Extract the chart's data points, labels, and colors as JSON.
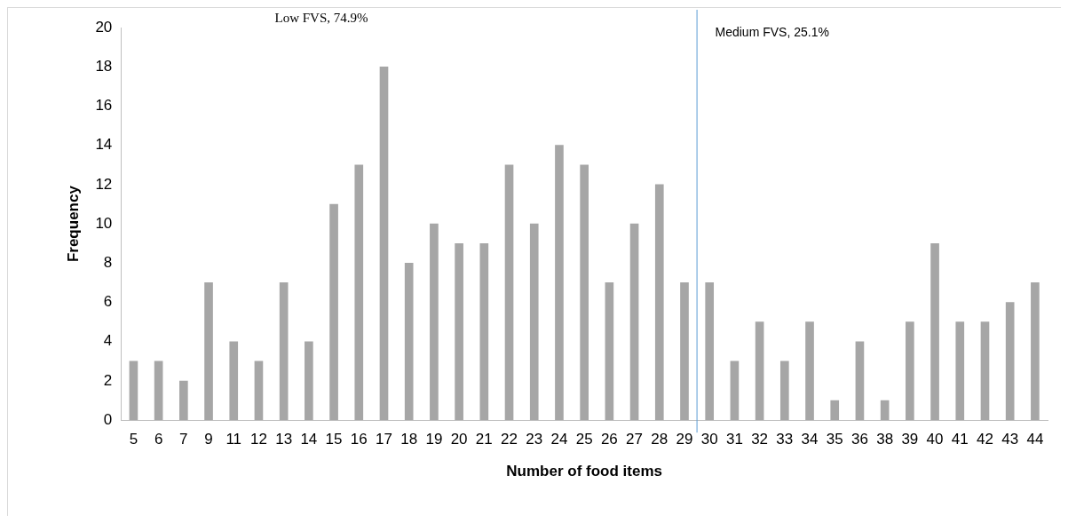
{
  "chart_data": {
    "type": "bar",
    "xlabel": "Number of food items",
    "ylabel": "Frequency",
    "categories": [
      "5",
      "6",
      "7",
      "9",
      "11",
      "12",
      "13",
      "14",
      "15",
      "16",
      "17",
      "18",
      "19",
      "20",
      "21",
      "22",
      "23",
      "24",
      "25",
      "26",
      "27",
      "28",
      "29",
      "30",
      "31",
      "32",
      "33",
      "34",
      "35",
      "36",
      "38",
      "39",
      "40",
      "41",
      "42",
      "43",
      "44"
    ],
    "values": [
      3,
      3,
      2,
      7,
      4,
      3,
      7,
      4,
      11,
      13,
      18,
      8,
      10,
      9,
      9,
      13,
      10,
      14,
      13,
      7,
      10,
      12,
      7,
      7,
      3,
      5,
      3,
      5,
      1,
      4,
      1,
      5,
      9,
      5,
      5,
      6,
      7
    ],
    "color": "#a6a6a6",
    "ylim": [
      0,
      20
    ],
    "yticks": [
      0,
      2,
      4,
      6,
      8,
      10,
      12,
      14,
      16,
      18,
      20
    ],
    "ref_lines": [
      {
        "axis": "x",
        "value": "30",
        "color": "#5b9bd5"
      }
    ],
    "annotations": [
      "Low FVS, 74.9%",
      "Medium FVS, 25.1%"
    ]
  }
}
